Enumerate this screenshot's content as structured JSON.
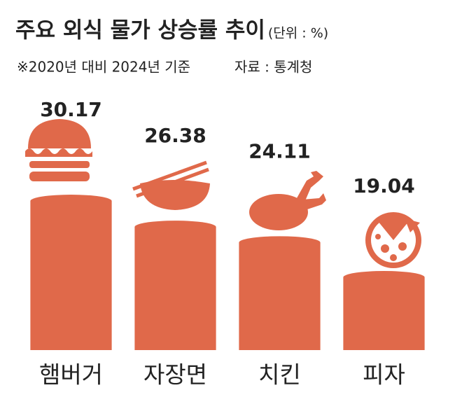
{
  "chart_data": {
    "type": "bar",
    "title": "주요 외식 물가 상승률 추이",
    "unit": "(단위 : %)",
    "subtitle": "※2020년 대비 2024년 기준",
    "source": "자료 : 통계청",
    "categories": [
      "햄버거",
      "자장면",
      "치킨",
      "피자"
    ],
    "values": [
      30.17,
      26.38,
      24.11,
      19.04
    ],
    "color": "#e0694a",
    "ylim": [
      7.5,
      31.5
    ]
  }
}
